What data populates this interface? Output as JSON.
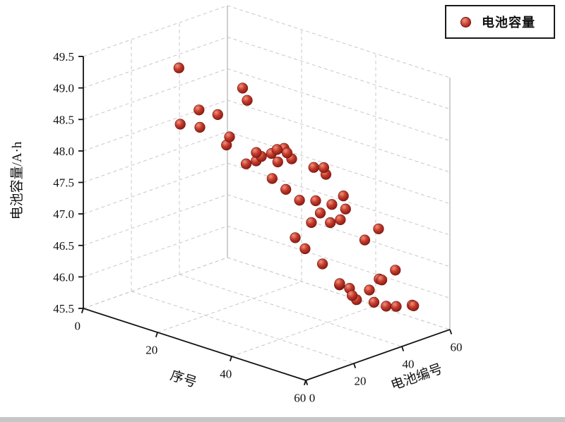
{
  "page": {
    "background": "#ffffff"
  },
  "legend": {
    "position": "top-right",
    "border_color": "#1a1a1a"
  },
  "chart_data": {
    "type": "scatter",
    "subtype": "3d-scatter",
    "title": "",
    "xlabel": "序号",
    "ylabel": "电池编号",
    "zlabel": "电池容量/A·h",
    "xlim": [
      0,
      60
    ],
    "ylim": [
      0,
      60
    ],
    "zlim": [
      45.5,
      49.5
    ],
    "xticks": [
      "0",
      "20",
      "40",
      "60"
    ],
    "yticks": [
      "0",
      "20",
      "40",
      "60"
    ],
    "zticks": [
      "45.5",
      "46.0",
      "46.5",
      "47.0",
      "47.5",
      "48.0",
      "48.5",
      "49.0",
      "49.5"
    ],
    "grid": true,
    "grid_style": "dashed",
    "grid_color": "#c8c8c8",
    "axis_color": "#111111",
    "legend_position": "top-right",
    "series": [
      {
        "name": "电池容量",
        "marker": {
          "shape": "sphere",
          "size": 15,
          "color": "#c23531",
          "edge_color": "#6e120b"
        },
        "points": [
          [
            18,
            12,
            49.5
          ],
          [
            30,
            20,
            49.3
          ],
          [
            28,
            25,
            49.0
          ],
          [
            15,
            25,
            48.6
          ],
          [
            22,
            22,
            48.7
          ],
          [
            8,
            28,
            48.2
          ],
          [
            12,
            30,
            48.2
          ],
          [
            20,
            30,
            48.2
          ],
          [
            35,
            18,
            48.4
          ],
          [
            38,
            22,
            48.45
          ],
          [
            40,
            25,
            48.3
          ],
          [
            36,
            28,
            48.35
          ],
          [
            42,
            20,
            48.5
          ],
          [
            30,
            32,
            48.1
          ],
          [
            33,
            30,
            48.05
          ],
          [
            26,
            34,
            47.95
          ],
          [
            44,
            28,
            48.2
          ],
          [
            46,
            30,
            48.1
          ],
          [
            48,
            26,
            48.3
          ],
          [
            14,
            38,
            47.85
          ],
          [
            18,
            40,
            47.6
          ],
          [
            22,
            38,
            47.75
          ],
          [
            25,
            40,
            47.5
          ],
          [
            30,
            38,
            47.45
          ],
          [
            35,
            36,
            47.4
          ],
          [
            40,
            35,
            47.5
          ],
          [
            45,
            34,
            47.55
          ],
          [
            50,
            32,
            47.6
          ],
          [
            52,
            28,
            47.9
          ],
          [
            38,
            40,
            47.2
          ],
          [
            42,
            38,
            47.15
          ],
          [
            46,
            36,
            47.3
          ],
          [
            33,
            44,
            46.9
          ],
          [
            50,
            40,
            47.0
          ],
          [
            55,
            38,
            47.3
          ],
          [
            28,
            45,
            46.55
          ],
          [
            30,
            46,
            46.4
          ],
          [
            36,
            44,
            46.3
          ],
          [
            40,
            45,
            46.05
          ],
          [
            42,
            46,
            46.0
          ],
          [
            44,
            44,
            45.95
          ],
          [
            38,
            48,
            45.95
          ],
          [
            48,
            45,
            46.1
          ],
          [
            50,
            46,
            46.3
          ],
          [
            52,
            44,
            46.35
          ],
          [
            55,
            45,
            46.55
          ],
          [
            46,
            50,
            45.8
          ],
          [
            52,
            50,
            45.85
          ],
          [
            58,
            48,
            46.0
          ],
          [
            40,
            52,
            45.7
          ],
          [
            48,
            52,
            45.75
          ],
          [
            55,
            52,
            45.9
          ]
        ]
      }
    ]
  }
}
